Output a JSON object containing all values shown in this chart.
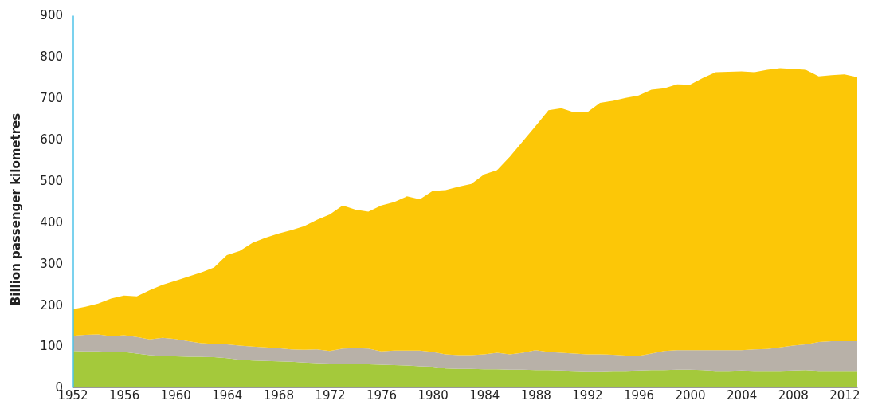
{
  "chart_data": {
    "type": "area",
    "stacked": true,
    "ylabel": "Billion passenger kilometres",
    "x": [
      1952,
      1953,
      1954,
      1955,
      1956,
      1957,
      1958,
      1959,
      1960,
      1961,
      1962,
      1963,
      1964,
      1965,
      1966,
      1967,
      1968,
      1969,
      1970,
      1971,
      1972,
      1973,
      1974,
      1975,
      1976,
      1977,
      1978,
      1979,
      1980,
      1981,
      1982,
      1983,
      1984,
      1985,
      1986,
      1987,
      1988,
      1989,
      1990,
      1991,
      1992,
      1993,
      1994,
      1995,
      1996,
      1997,
      1998,
      1999,
      2000,
      2001,
      2002,
      2003,
      2004,
      2005,
      2006,
      2007,
      2008,
      2009,
      2010,
      2011,
      2012,
      2013
    ],
    "xlim": [
      1952,
      2013
    ],
    "xticks": [
      1952,
      1956,
      1960,
      1964,
      1968,
      1972,
      1976,
      1980,
      1984,
      1988,
      1992,
      1996,
      2000,
      2004,
      2008,
      2012
    ],
    "ylim": [
      0,
      900
    ],
    "yticks": [
      0,
      100,
      200,
      300,
      400,
      500,
      600,
      700,
      800,
      900
    ],
    "grid": false,
    "series": [
      {
        "color": "#a4c93b",
        "values": [
          88,
          87,
          87,
          86,
          86,
          82,
          78,
          76,
          75,
          74,
          74,
          73,
          71,
          67,
          65,
          64,
          63,
          62,
          60,
          59,
          58,
          58,
          57,
          56,
          55,
          54,
          53,
          51,
          50,
          46,
          45,
          45,
          44,
          44,
          43,
          43,
          42,
          42,
          41,
          40,
          39,
          39,
          40,
          40,
          41,
          42,
          42,
          43,
          43,
          42,
          40,
          40,
          41,
          40,
          40,
          40,
          41,
          42,
          40,
          40,
          40,
          40
        ]
      },
      {
        "color": "#b8b1a8",
        "values": [
          37,
          40,
          41,
          38,
          40,
          40,
          38,
          44,
          42,
          38,
          33,
          32,
          33,
          34,
          34,
          33,
          32,
          30,
          31,
          33,
          30,
          36,
          38,
          38,
          32,
          35,
          36,
          38,
          36,
          34,
          33,
          33,
          36,
          40,
          37,
          41,
          48,
          44,
          43,
          42,
          41,
          41,
          39,
          37,
          35,
          40,
          46,
          47,
          47,
          48,
          50,
          50,
          49,
          52,
          53,
          57,
          60,
          62,
          70,
          72,
          72,
          72
        ]
      },
      {
        "color": "#fcc707",
        "values": [
          64,
          68,
          75,
          91,
          96,
          98,
          119,
          128,
          141,
          156,
          171,
          185,
          216,
          229,
          251,
          265,
          277,
          288,
          299,
          313,
          330,
          346,
          335,
          331,
          353,
          359,
          373,
          366,
          389,
          397,
          407,
          414,
          435,
          441,
          478,
          511,
          542,
          584,
          591,
          583,
          585,
          608,
          614,
          623,
          630,
          638,
          635,
          643,
          642,
          658,
          672,
          673,
          674,
          670,
          675,
          675,
          669,
          664,
          642,
          643,
          645,
          638
        ]
      }
    ]
  }
}
